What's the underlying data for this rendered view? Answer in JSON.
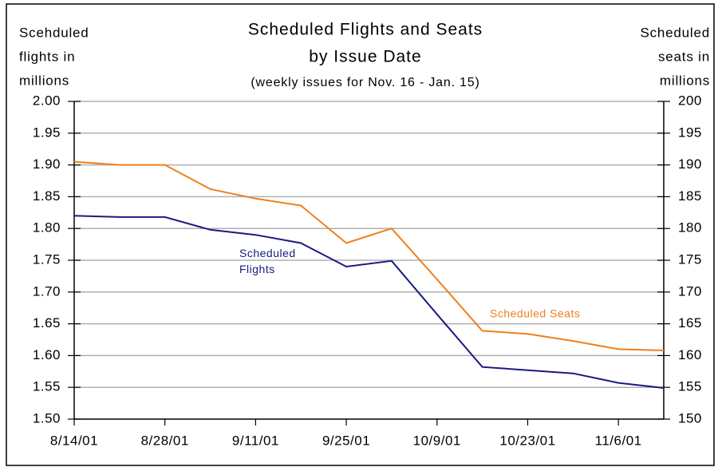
{
  "chart_data": {
    "type": "line",
    "title": [
      "Scheduled Flights and Seats",
      "by Issue Date"
    ],
    "subtitle": "(weekly issues for Nov. 16 - Jan. 15)",
    "ylabel": [
      "Scehduled",
      "flights in",
      "millions"
    ],
    "y2label": [
      "Scheduled",
      "seats in",
      "millions"
    ],
    "categories": [
      "8/14/01",
      null,
      "8/28/01",
      null,
      "9/11/01",
      null,
      "9/25/01",
      null,
      "10/9/01",
      null,
      "10/23/01",
      null,
      "11/6/01",
      null
    ],
    "series": [
      {
        "name": "Scheduled Flights",
        "color": "#1a1a80",
        "values": [
          1.82,
          1.818,
          1.818,
          1.798,
          1.79,
          1.777,
          1.74,
          1.749,
          1.665,
          1.582,
          1.577,
          1.572,
          1.557,
          1.549
        ]
      },
      {
        "name": "Scheduled Seats",
        "color": "#f07f1e",
        "axis": "y2",
        "values": [
          190.5,
          190,
          190,
          186.2,
          184.7,
          183.6,
          177.7,
          180,
          172,
          163.9,
          163.4,
          162.3,
          161,
          160.8
        ]
      }
    ],
    "ylim": [
      1.5,
      2.0
    ],
    "yticks": [
      {
        "value": 1.5,
        "label": "1.50"
      },
      1.55,
      {
        "value": 1.6,
        "label": "1.60"
      },
      1.65,
      {
        "value": 1.7,
        "label": "1.70"
      },
      1.75,
      {
        "value": 1.8,
        "label": "1.80"
      },
      1.85,
      {
        "value": 1.9,
        "label": "1.90"
      },
      1.95,
      {
        "value": 2.0,
        "label": "2.00"
      }
    ],
    "y2lim": [
      150,
      200
    ],
    "y2ticks": [
      150,
      155,
      160,
      165,
      170,
      175,
      180,
      185,
      190,
      195,
      200
    ],
    "grid": true
  }
}
